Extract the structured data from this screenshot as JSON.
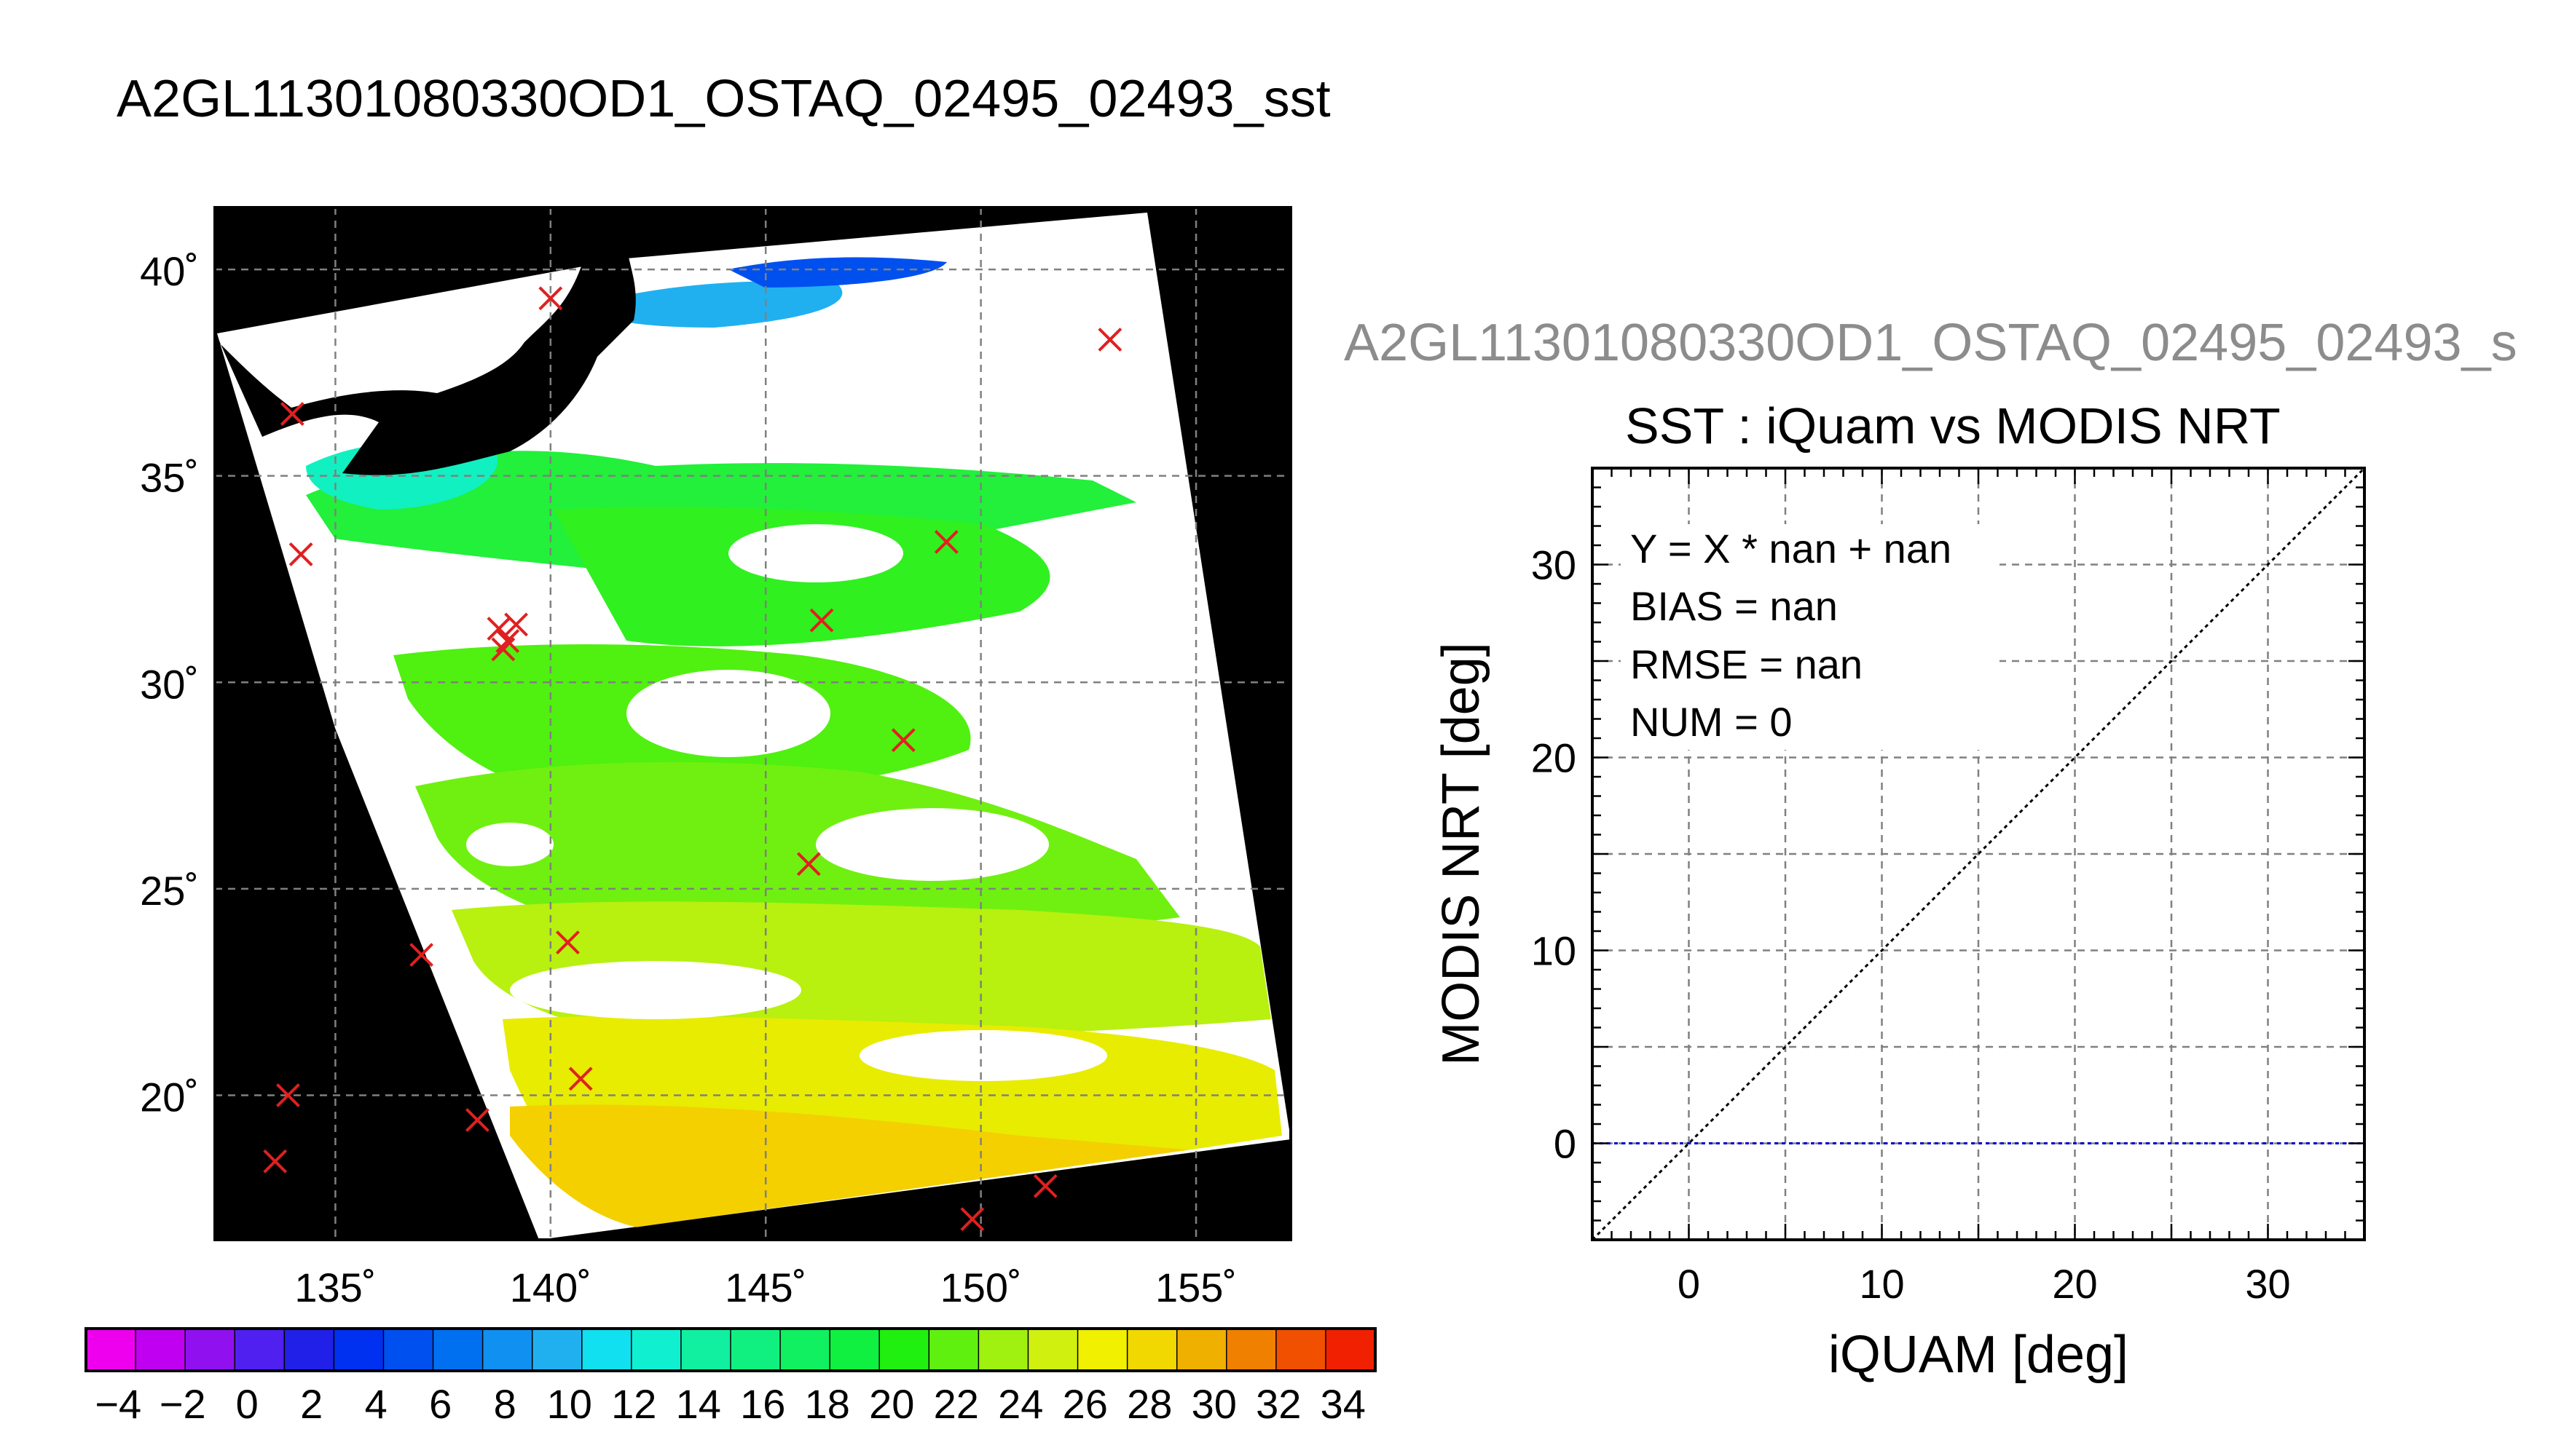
{
  "title": "A2GL11301080330OD1_OSTAQ_02495_02493_sst",
  "map": {
    "lat_ticks": [
      "40˚",
      "35˚",
      "30˚",
      "25˚",
      "20˚"
    ],
    "lon_ticks": [
      "135˚",
      "140˚",
      "145˚",
      "150˚",
      "155˚"
    ],
    "lat_range": [
      16.5,
      41.5
    ],
    "lon_range": [
      132.2,
      157.2
    ],
    "grid": true,
    "background": "#000000",
    "cloud_color": "#ffffff",
    "marker_color": "#e02020",
    "marker_symbol": "×",
    "markers_lonlat": [
      [
        134.0,
        36.5
      ],
      [
        140.0,
        39.3
      ],
      [
        134.2,
        33.1
      ],
      [
        138.8,
        31.3
      ],
      [
        139.0,
        31.0
      ],
      [
        138.9,
        30.8
      ],
      [
        139.2,
        31.4
      ],
      [
        146.3,
        31.5
      ],
      [
        149.2,
        33.4
      ],
      [
        153.0,
        38.3
      ],
      [
        148.2,
        28.6
      ],
      [
        146.0,
        25.6
      ],
      [
        137.0,
        23.4
      ],
      [
        140.4,
        23.7
      ],
      [
        133.9,
        20.0
      ],
      [
        138.3,
        19.4
      ],
      [
        140.7,
        20.4
      ],
      [
        133.6,
        18.4
      ],
      [
        149.8,
        17.0
      ],
      [
        151.5,
        17.8
      ]
    ]
  },
  "colorbar": {
    "tick_labels": [
      "−4",
      "−2",
      "0",
      "2",
      "4",
      "6",
      "8",
      "10",
      "12",
      "14",
      "16",
      "18",
      "20",
      "22",
      "24",
      "26",
      "28",
      "30",
      "32",
      "34"
    ],
    "range": [
      -5,
      35
    ],
    "colors": [
      "#ee00ee",
      "#c000f0",
      "#9010f0",
      "#5020f0",
      "#2020e8",
      "#0030f0",
      "#0050f0",
      "#0070f0",
      "#1090f0",
      "#20b0f0",
      "#10e0f0",
      "#10f0d0",
      "#10f0a0",
      "#10f080",
      "#10f060",
      "#10f040",
      "#20f010",
      "#60f010",
      "#a0f010",
      "#d0f010",
      "#f0f000",
      "#f0d800",
      "#f0b000",
      "#f08000",
      "#f05000",
      "#f02000"
    ]
  },
  "scatter": {
    "panel_title": "A2GL11301080330OD1_OSTAQ_02495_02493_s",
    "subtitle": "SST : iQuam vs MODIS NRT",
    "stats": {
      "line1": "Y = X * nan + nan",
      "line2": "BIAS = nan",
      "line3": "RMSE = nan",
      "line4": "NUM = 0"
    }
  },
  "chart_data": {
    "type": "scatter",
    "title": "SST : iQuam vs MODIS NRT",
    "xlabel": "iQUAM [deg]",
    "ylabel": "MODIS NRT [deg]",
    "xlim": [
      -5,
      35
    ],
    "ylim": [
      -5,
      35
    ],
    "xticks": [
      "0",
      "10",
      "20",
      "30"
    ],
    "yticks": [
      "0",
      "10",
      "20",
      "30"
    ],
    "grid": true,
    "points": [],
    "lines": [
      {
        "name": "",
        "kind": "identity",
        "x": [
          -5,
          35
        ],
        "y": [
          -5,
          35
        ],
        "color": "#000000",
        "style": "dotted"
      },
      {
        "name": "",
        "kind": "zero",
        "x": [
          -5,
          35
        ],
        "y": [
          0,
          0
        ],
        "color": "#0000cc",
        "style": "dotted"
      }
    ]
  }
}
